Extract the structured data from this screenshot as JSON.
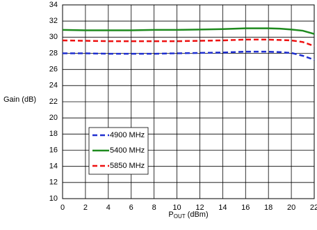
{
  "chart_data": {
    "type": "line",
    "y_label": "Gain (dB)",
    "x_label": [
      "P",
      "OUT",
      " (dBm)"
    ],
    "x": [
      0,
      2,
      4,
      6,
      8,
      10,
      12,
      14,
      16,
      17,
      18,
      19,
      20,
      21,
      22
    ],
    "series": [
      {
        "name": "4900 MHz",
        "color": "#1f2fd0",
        "style": "dashed",
        "values": [
          28.0,
          28.0,
          27.95,
          27.95,
          27.95,
          28.0,
          28.05,
          28.1,
          28.2,
          28.2,
          28.2,
          28.15,
          28.05,
          27.7,
          27.2
        ]
      },
      {
        "name": "5400 MHz",
        "color": "#1e8a1e",
        "style": "solid",
        "values": [
          30.9,
          30.85,
          30.85,
          30.85,
          30.9,
          30.9,
          30.95,
          31.0,
          31.1,
          31.1,
          31.1,
          31.05,
          30.95,
          30.8,
          30.4
        ]
      },
      {
        "name": "5850 MHz",
        "color": "#ee1111",
        "style": "dashed",
        "values": [
          29.6,
          29.55,
          29.5,
          29.5,
          29.5,
          29.5,
          29.55,
          29.6,
          29.7,
          29.7,
          29.7,
          29.65,
          29.6,
          29.4,
          28.9
        ]
      }
    ],
    "xlim": [
      0,
      22
    ],
    "xticks": [
      0,
      2,
      4,
      6,
      8,
      10,
      12,
      14,
      16,
      18,
      20,
      22
    ],
    "ylim": [
      10,
      34
    ],
    "yticks": [
      10,
      12,
      14,
      16,
      18,
      20,
      22,
      24,
      26,
      28,
      30,
      32,
      34
    ],
    "grid": true
  }
}
